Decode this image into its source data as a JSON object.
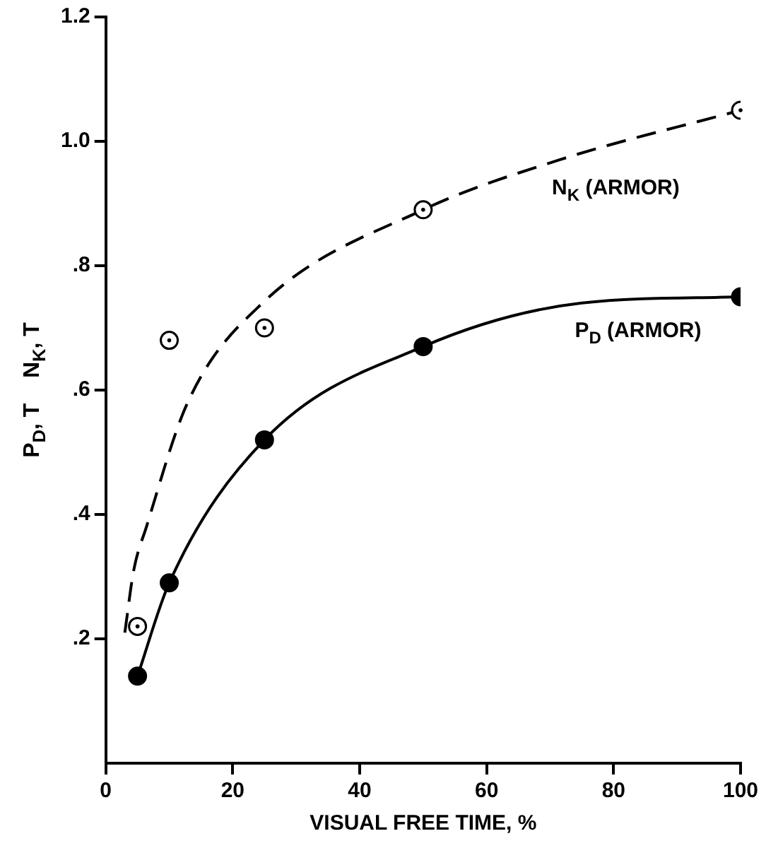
{
  "chart_data": {
    "type": "scatter",
    "xlabel": "VISUAL FREE TIME, %",
    "ylabel": "P$_{D}$, T    N$_{K}$, T",
    "xlim": [
      0,
      100
    ],
    "xticks": [
      0,
      20,
      40,
      60,
      80,
      100
    ],
    "ylim": [
      0,
      1.2
    ],
    "yticks": [
      {
        "value": 0.2,
        "label": ".2"
      },
      {
        "value": 0.4,
        "label": ".4"
      },
      {
        "value": 0.6,
        "label": ".6"
      },
      {
        "value": 0.8,
        "label": ".8"
      },
      {
        "value": 1.0,
        "label": "1.0"
      },
      {
        "value": 1.2,
        "label": "1.2"
      }
    ],
    "grid": false,
    "legend": false,
    "series": [
      {
        "type": "scatter",
        "color": "#000000",
        "marker": "circle-open",
        "x": [
          5,
          10,
          25,
          50,
          100
        ],
        "values": [
          0.22,
          0.68,
          0.7,
          0.89,
          1.05
        ]
      },
      {
        "type": "scatter",
        "color": "#000000",
        "marker": "circle",
        "x": [
          5,
          10,
          25,
          50,
          100
        ],
        "values": [
          0.14,
          0.29,
          0.52,
          0.67,
          0.75
        ]
      },
      {
        "type": "line",
        "name": "N$_{K}$ (ARMOR)",
        "color": "#000000",
        "marker": "none",
        "line_style": "dashed",
        "x": [
          3,
          4.4,
          6.4,
          12.9,
          24.7,
          50,
          71.4,
          100
        ],
        "values": [
          0.21,
          0.31,
          0.38,
          0.58,
          0.74,
          0.89,
          0.97,
          1.05
        ]
      },
      {
        "type": "line",
        "name": "P$_{D}$ (ARMOR)",
        "color": "#000000",
        "marker": "none",
        "line_style": "solid",
        "x": [
          5,
          10,
          25,
          50,
          75,
          100
        ],
        "values": [
          0.14,
          0.29,
          0.52,
          0.67,
          0.74,
          0.75
        ]
      }
    ]
  }
}
